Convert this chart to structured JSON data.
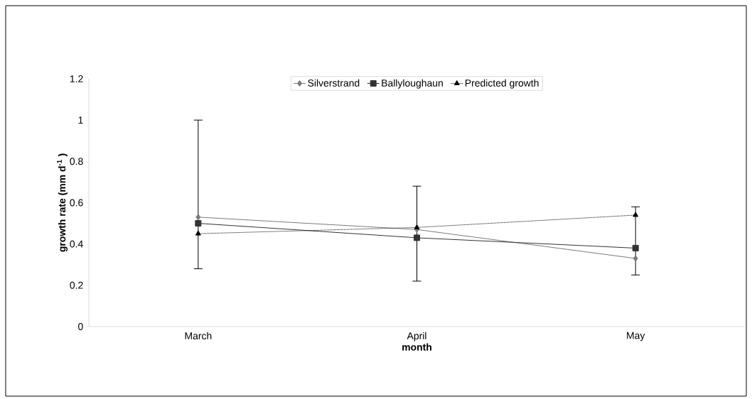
{
  "chart_data": {
    "type": "line",
    "xlabel": "month",
    "ylabel": "growth rate (mm d$^{-1}$ )",
    "categories": [
      "March",
      "April",
      "May"
    ],
    "series": [
      {
        "name": "Silverstrand",
        "color": "#7a7a7a",
        "marker": "diamond",
        "line_style": "solid",
        "values": [
          0.53,
          0.47,
          0.33
        ],
        "errors": [
          [
            0.28,
            1.0
          ],
          [
            0.22,
            0.68
          ],
          [
            0.25,
            0.58
          ]
        ]
      },
      {
        "name": "Ballyloughaun",
        "color": "#333333",
        "marker": "square",
        "line_style": "solid",
        "values": [
          0.5,
          0.43,
          0.38
        ]
      },
      {
        "name": "Predicted growth",
        "color": "#000000",
        "marker": "triangle",
        "line_style": "dotted",
        "values": [
          0.45,
          0.48,
          0.54
        ]
      }
    ],
    "ylim": [
      0,
      1.2
    ],
    "yticks": [
      0,
      0.2,
      0.4,
      0.6,
      0.8,
      1,
      1.2
    ],
    "grid": false,
    "legend": "top"
  }
}
